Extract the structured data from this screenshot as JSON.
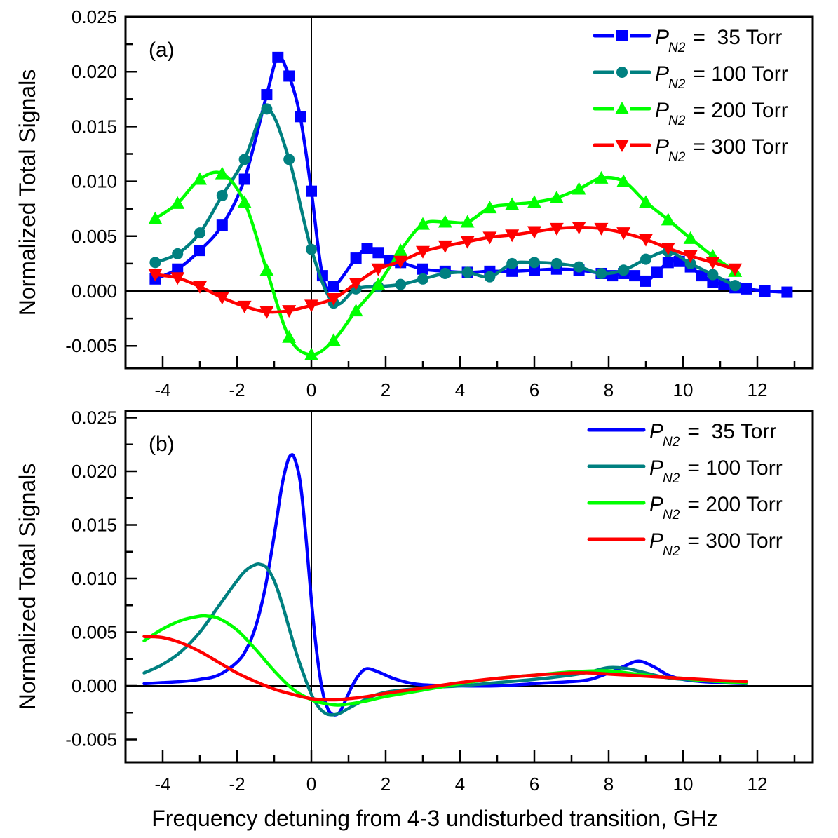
{
  "chart_data": [
    {
      "type": "line",
      "panel_label": "(a)",
      "ylabel": "Normalized Total Signals",
      "xlabel": "",
      "xlim": [
        -5,
        13.5
      ],
      "ylim": [
        -0.007,
        0.025
      ],
      "x_ticks": [
        -4,
        -2,
        0,
        2,
        4,
        6,
        8,
        10,
        12
      ],
      "x_tick_labels": [
        "-4",
        "-2",
        "0",
        "2",
        "4",
        "6",
        "8",
        "10",
        "12"
      ],
      "y_ticks": [
        -0.005,
        0.0,
        0.005,
        0.01,
        0.015,
        0.02,
        0.025
      ],
      "y_tick_labels": [
        "-0.005",
        "0.000",
        "0.005",
        "0.010",
        "0.015",
        "0.020",
        "0.025"
      ],
      "zero_lines": true,
      "legend_position": "top-right",
      "markers": true,
      "series": [
        {
          "name": "P_N2 = 35 Torr",
          "legend_prefix": "P",
          "legend_sub": "N2",
          "legend_suffix": " =  35 Torr",
          "color": "#0000ff",
          "marker": "square",
          "x": [
            -4.2,
            -3.6,
            -3.0,
            -2.4,
            -1.8,
            -1.2,
            -0.9,
            -0.6,
            -0.3,
            0.0,
            0.3,
            0.6,
            1.2,
            1.5,
            1.8,
            2.1,
            2.4,
            3.0,
            3.6,
            4.2,
            4.8,
            5.4,
            6.0,
            6.6,
            7.2,
            7.8,
            8.1,
            8.4,
            8.7,
            9.0,
            9.3,
            9.6,
            9.9,
            10.2,
            10.5,
            10.8,
            11.1,
            11.4,
            11.7,
            12.2,
            12.8
          ],
          "y": [
            0.0011,
            0.002,
            0.0037,
            0.006,
            0.0102,
            0.0179,
            0.0213,
            0.0196,
            0.0159,
            0.0091,
            0.0014,
            0.0004,
            0.003,
            0.0039,
            0.0035,
            0.0028,
            0.0026,
            0.002,
            0.0018,
            0.0017,
            0.0018,
            0.0018,
            0.0019,
            0.002,
            0.0019,
            0.0016,
            0.0014,
            0.0016,
            0.0014,
            0.0009,
            0.0017,
            0.0026,
            0.0027,
            0.0022,
            0.0014,
            0.0008,
            0.0006,
            0.0003,
            0.0002,
            0.0,
            -0.0001
          ]
        },
        {
          "name": "P_N2 = 100 Torr",
          "legend_prefix": "P",
          "legend_sub": "N2",
          "legend_suffix": " = 100 Torr",
          "color": "#008080",
          "marker": "circle",
          "x": [
            -4.2,
            -3.6,
            -3.0,
            -2.4,
            -1.8,
            -1.2,
            -0.6,
            0.0,
            0.6,
            1.2,
            1.8,
            2.4,
            3.0,
            3.6,
            4.2,
            4.8,
            5.4,
            6.0,
            6.6,
            7.2,
            7.8,
            8.4,
            9.0,
            9.6,
            10.2,
            10.8,
            11.4
          ],
          "y": [
            0.0026,
            0.0034,
            0.0053,
            0.0087,
            0.012,
            0.0166,
            0.012,
            0.0038,
            -0.0011,
            0.0002,
            0.0004,
            0.0006,
            0.0011,
            0.0016,
            0.0017,
            0.0013,
            0.0025,
            0.0026,
            0.0025,
            0.0022,
            0.0016,
            0.0019,
            0.0029,
            0.0036,
            0.0025,
            0.0015,
            0.0005
          ]
        },
        {
          "name": "P_N2 = 200 Torr",
          "legend_prefix": "P",
          "legend_sub": "N2",
          "legend_suffix": " = 200 Torr",
          "color": "#00ff00",
          "marker": "triangle-up",
          "x": [
            -4.2,
            -3.6,
            -3.0,
            -2.4,
            -1.8,
            -1.2,
            -0.6,
            0.0,
            0.6,
            1.2,
            1.8,
            2.4,
            3.0,
            3.6,
            4.2,
            4.8,
            5.4,
            6.0,
            6.6,
            7.2,
            7.8,
            8.4,
            9.0,
            9.6,
            10.2,
            10.8,
            11.4
          ],
          "y": [
            0.0066,
            0.008,
            0.0102,
            0.0107,
            0.0081,
            0.0019,
            -0.0042,
            -0.0058,
            -0.0045,
            -0.0018,
            0.0006,
            0.0037,
            0.0061,
            0.0063,
            0.0063,
            0.0076,
            0.0079,
            0.0081,
            0.0085,
            0.0093,
            0.0103,
            0.01,
            0.0081,
            0.0065,
            0.0048,
            0.0032,
            0.0018
          ]
        },
        {
          "name": "P_N2 = 300 Torr",
          "legend_prefix": "P",
          "legend_sub": "N2",
          "legend_suffix": " = 300 Torr",
          "color": "#ff0000",
          "marker": "triangle-down",
          "x": [
            -4.2,
            -3.6,
            -3.0,
            -2.4,
            -1.8,
            -1.2,
            -0.6,
            0.0,
            0.6,
            1.2,
            1.8,
            2.4,
            3.0,
            3.6,
            4.2,
            4.8,
            5.4,
            6.0,
            6.6,
            7.2,
            7.8,
            8.4,
            9.0,
            9.6,
            10.2,
            10.8,
            11.4
          ],
          "y": [
            0.0015,
            0.0012,
            0.0004,
            -0.0006,
            -0.0014,
            -0.0019,
            -0.0018,
            -0.0013,
            -0.0007,
            0.0007,
            0.002,
            0.0027,
            0.0036,
            0.0041,
            0.0045,
            0.0049,
            0.0051,
            0.0054,
            0.0057,
            0.0058,
            0.0057,
            0.0053,
            0.0047,
            0.0039,
            0.0032,
            0.0026,
            0.002
          ]
        }
      ]
    },
    {
      "type": "line",
      "panel_label": "(b)",
      "ylabel": "Normalized Total Signals",
      "xlabel": "Frequency detuning from 4-3 undisturbed transition, GHz",
      "xlim": [
        -5,
        13.5
      ],
      "ylim": [
        -0.0075,
        0.025
      ],
      "x_ticks": [
        -4,
        -2,
        0,
        2,
        4,
        6,
        8,
        10,
        12
      ],
      "x_tick_labels": [
        "-4",
        "-2",
        "0",
        "2",
        "4",
        "6",
        "8",
        "10",
        "12"
      ],
      "y_ticks": [
        -0.005,
        0.0,
        0.005,
        0.01,
        0.015,
        0.02,
        0.025
      ],
      "y_tick_labels": [
        "-0.005",
        "0.000",
        "0.005",
        "0.010",
        "0.015",
        "0.020",
        "0.025"
      ],
      "zero_lines": true,
      "legend_position": "top-right",
      "markers": false,
      "series": [
        {
          "name": "P_N2 = 35 Torr",
          "legend_prefix": "P",
          "legend_sub": "N2",
          "legend_suffix": " =  35 Torr",
          "color": "#0000ff",
          "x": [
            -4.5,
            -4.0,
            -3.5,
            -3.0,
            -2.5,
            -2.0,
            -1.75,
            -1.5,
            -1.25,
            -1.0,
            -0.8,
            -0.65,
            -0.55,
            -0.45,
            -0.3,
            -0.15,
            0.0,
            0.15,
            0.3,
            0.45,
            0.6,
            0.75,
            0.9,
            1.1,
            1.3,
            1.5,
            1.8,
            2.2,
            2.6,
            3.0,
            4.0,
            5.0,
            6.0,
            7.0,
            7.5,
            8.0,
            8.4,
            8.8,
            9.2,
            9.6,
            10.0,
            10.5,
            11.0,
            11.7
          ],
          "y": [
            0.0002,
            0.0003,
            0.0004,
            0.0006,
            0.001,
            0.0022,
            0.0034,
            0.0055,
            0.009,
            0.014,
            0.0185,
            0.0208,
            0.0215,
            0.0212,
            0.019,
            0.014,
            0.008,
            0.003,
            -0.0005,
            -0.0022,
            -0.0027,
            -0.0025,
            -0.0015,
            0.0,
            0.0011,
            0.0016,
            0.0013,
            0.0007,
            0.0003,
            0.0001,
            0.0,
            0.0,
            0.0002,
            0.0004,
            0.0006,
            0.0012,
            0.0018,
            0.0023,
            0.0018,
            0.001,
            0.0006,
            0.0004,
            0.0003,
            0.0002
          ]
        },
        {
          "name": "P_N2 = 100 Torr",
          "legend_prefix": "P",
          "legend_sub": "N2",
          "legend_suffix": " = 100 Torr",
          "color": "#008080",
          "x": [
            -4.5,
            -4.0,
            -3.5,
            -3.0,
            -2.5,
            -2.0,
            -1.75,
            -1.5,
            -1.35,
            -1.2,
            -1.0,
            -0.8,
            -0.6,
            -0.4,
            -0.2,
            0.0,
            0.2,
            0.4,
            0.6,
            0.8,
            1.0,
            1.5,
            2.0,
            3.0,
            4.0,
            5.0,
            6.0,
            7.0,
            7.5,
            8.0,
            8.5,
            9.0,
            9.5,
            10.0,
            10.5,
            11.0,
            11.7
          ],
          "y": [
            0.0012,
            0.002,
            0.0032,
            0.005,
            0.0074,
            0.0098,
            0.0108,
            0.0113,
            0.0113,
            0.011,
            0.0098,
            0.0078,
            0.0054,
            0.003,
            0.001,
            -0.0008,
            -0.002,
            -0.0026,
            -0.0027,
            -0.0025,
            -0.0021,
            -0.0012,
            -0.0006,
            -0.0002,
            0.0,
            0.0003,
            0.0006,
            0.001,
            0.0013,
            0.0017,
            0.0016,
            0.0012,
            0.0008,
            0.0006,
            0.0005,
            0.0004,
            0.0002
          ]
        },
        {
          "name": "P_N2 = 200 Torr",
          "legend_prefix": "P",
          "legend_sub": "N2",
          "legend_suffix": " = 200 Torr",
          "color": "#00ff00",
          "x": [
            -4.5,
            -4.0,
            -3.5,
            -3.0,
            -2.8,
            -2.5,
            -2.0,
            -1.5,
            -1.0,
            -0.5,
            0.0,
            0.3,
            0.7,
            1.0,
            1.5,
            2.0,
            3.0,
            4.0,
            5.0,
            6.0,
            7.0,
            8.0,
            8.5,
            9.0,
            9.5,
            10.0,
            10.5,
            11.0,
            11.7
          ],
          "y": [
            0.0042,
            0.0053,
            0.0061,
            0.0065,
            0.0065,
            0.0063,
            0.0052,
            0.0034,
            0.0014,
            -0.0003,
            -0.0013,
            -0.0016,
            -0.0018,
            -0.0017,
            -0.0014,
            -0.001,
            -0.0004,
            0.0002,
            0.0007,
            0.001,
            0.0013,
            0.0014,
            0.0012,
            0.001,
            0.0008,
            0.0007,
            0.0005,
            0.0004,
            0.0003
          ]
        },
        {
          "name": "P_N2 = 300 Torr",
          "legend_prefix": "P",
          "legend_sub": "N2",
          "legend_suffix": " = 300 Torr",
          "color": "#ff0000",
          "x": [
            -4.5,
            -4.0,
            -3.5,
            -3.0,
            -2.5,
            -2.0,
            -1.5,
            -1.0,
            -0.5,
            0.0,
            0.4,
            0.7,
            1.0,
            1.5,
            2.0,
            3.0,
            4.0,
            5.0,
            6.0,
            7.0,
            7.5,
            8.0,
            9.0,
            10.0,
            11.0,
            11.7
          ],
          "y": [
            0.0046,
            0.0045,
            0.004,
            0.0032,
            0.0022,
            0.0012,
            0.0004,
            -0.0003,
            -0.0008,
            -0.0012,
            -0.0013,
            -0.0013,
            -0.0012,
            -0.001,
            -0.0007,
            -0.0002,
            0.0003,
            0.0007,
            0.001,
            0.0012,
            0.0012,
            0.0011,
            0.0009,
            0.0007,
            0.0005,
            0.0004
          ]
        }
      ]
    }
  ]
}
